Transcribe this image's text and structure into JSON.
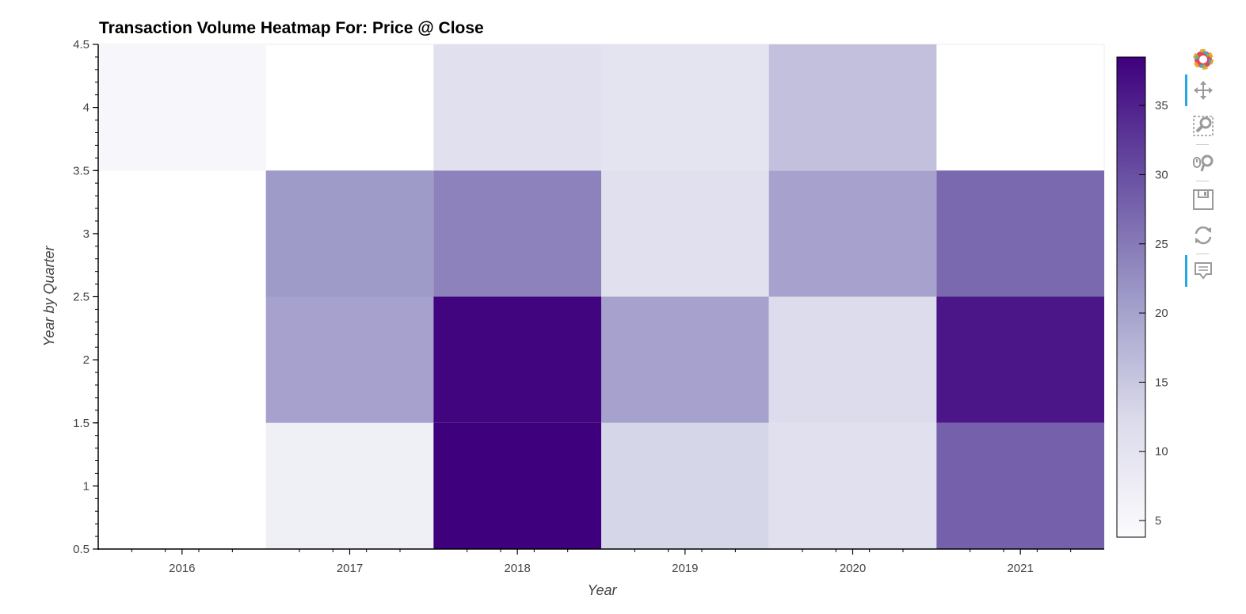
{
  "chart_data": {
    "type": "heatmap",
    "title": "Transaction Volume Heatmap For: Price @ Close",
    "xlabel": "Year",
    "ylabel": "Year by Quarter",
    "x_categories": [
      "2016",
      "2017",
      "2018",
      "2019",
      "2020",
      "2021"
    ],
    "y_range": [
      0.5,
      4.5
    ],
    "y_ticks": [
      "0.5",
      "1",
      "1.5",
      "2",
      "2.5",
      "3",
      "3.5",
      "4",
      "4.5"
    ],
    "quarters": [
      1,
      2,
      3,
      4
    ],
    "values": [
      {
        "year": "2016",
        "quarter": 1,
        "value": null
      },
      {
        "year": "2016",
        "quarter": 2,
        "value": null
      },
      {
        "year": "2016",
        "quarter": 3,
        "value": null
      },
      {
        "year": "2016",
        "quarter": 4,
        "value": 5
      },
      {
        "year": "2017",
        "quarter": 1,
        "value": 7
      },
      {
        "year": "2017",
        "quarter": 2,
        "value": 20
      },
      {
        "year": "2017",
        "quarter": 3,
        "value": 21
      },
      {
        "year": "2017",
        "quarter": 4,
        "value": null
      },
      {
        "year": "2018",
        "quarter": 1,
        "value": 38.5
      },
      {
        "year": "2018",
        "quarter": 2,
        "value": 38
      },
      {
        "year": "2018",
        "quarter": 3,
        "value": 24
      },
      {
        "year": "2018",
        "quarter": 4,
        "value": 11
      },
      {
        "year": "2019",
        "quarter": 1,
        "value": 13
      },
      {
        "year": "2019",
        "quarter": 2,
        "value": 20
      },
      {
        "year": "2019",
        "quarter": 3,
        "value": 11
      },
      {
        "year": "2019",
        "quarter": 4,
        "value": 10
      },
      {
        "year": "2020",
        "quarter": 1,
        "value": 11
      },
      {
        "year": "2020",
        "quarter": 2,
        "value": 12
      },
      {
        "year": "2020",
        "quarter": 3,
        "value": 20
      },
      {
        "year": "2020",
        "quarter": 4,
        "value": 16
      },
      {
        "year": "2021",
        "quarter": 1,
        "value": 28
      },
      {
        "year": "2021",
        "quarter": 2,
        "value": 36
      },
      {
        "year": "2021",
        "quarter": 3,
        "value": 27
      },
      {
        "year": "2021",
        "quarter": 4,
        "value": null
      }
    ],
    "color_range": [
      3.8,
      38.5
    ],
    "colorbar_ticks": [
      5,
      10,
      15,
      20,
      25,
      30,
      35
    ],
    "palette": {
      "low": "#fcfbfd",
      "mid1": "#dadaeb",
      "mid2": "#9e9ac8",
      "mid3": "#6a51a3",
      "high": "#3f007d"
    },
    "legend": "colorbar right",
    "grid": false
  },
  "toolbar": {
    "tools": [
      "bokeh-logo-icon",
      "pan-icon",
      "box-zoom-icon",
      "wheel-zoom-icon",
      "save-icon",
      "reset-icon",
      "hover-icon"
    ],
    "accent": "#26aae1"
  }
}
